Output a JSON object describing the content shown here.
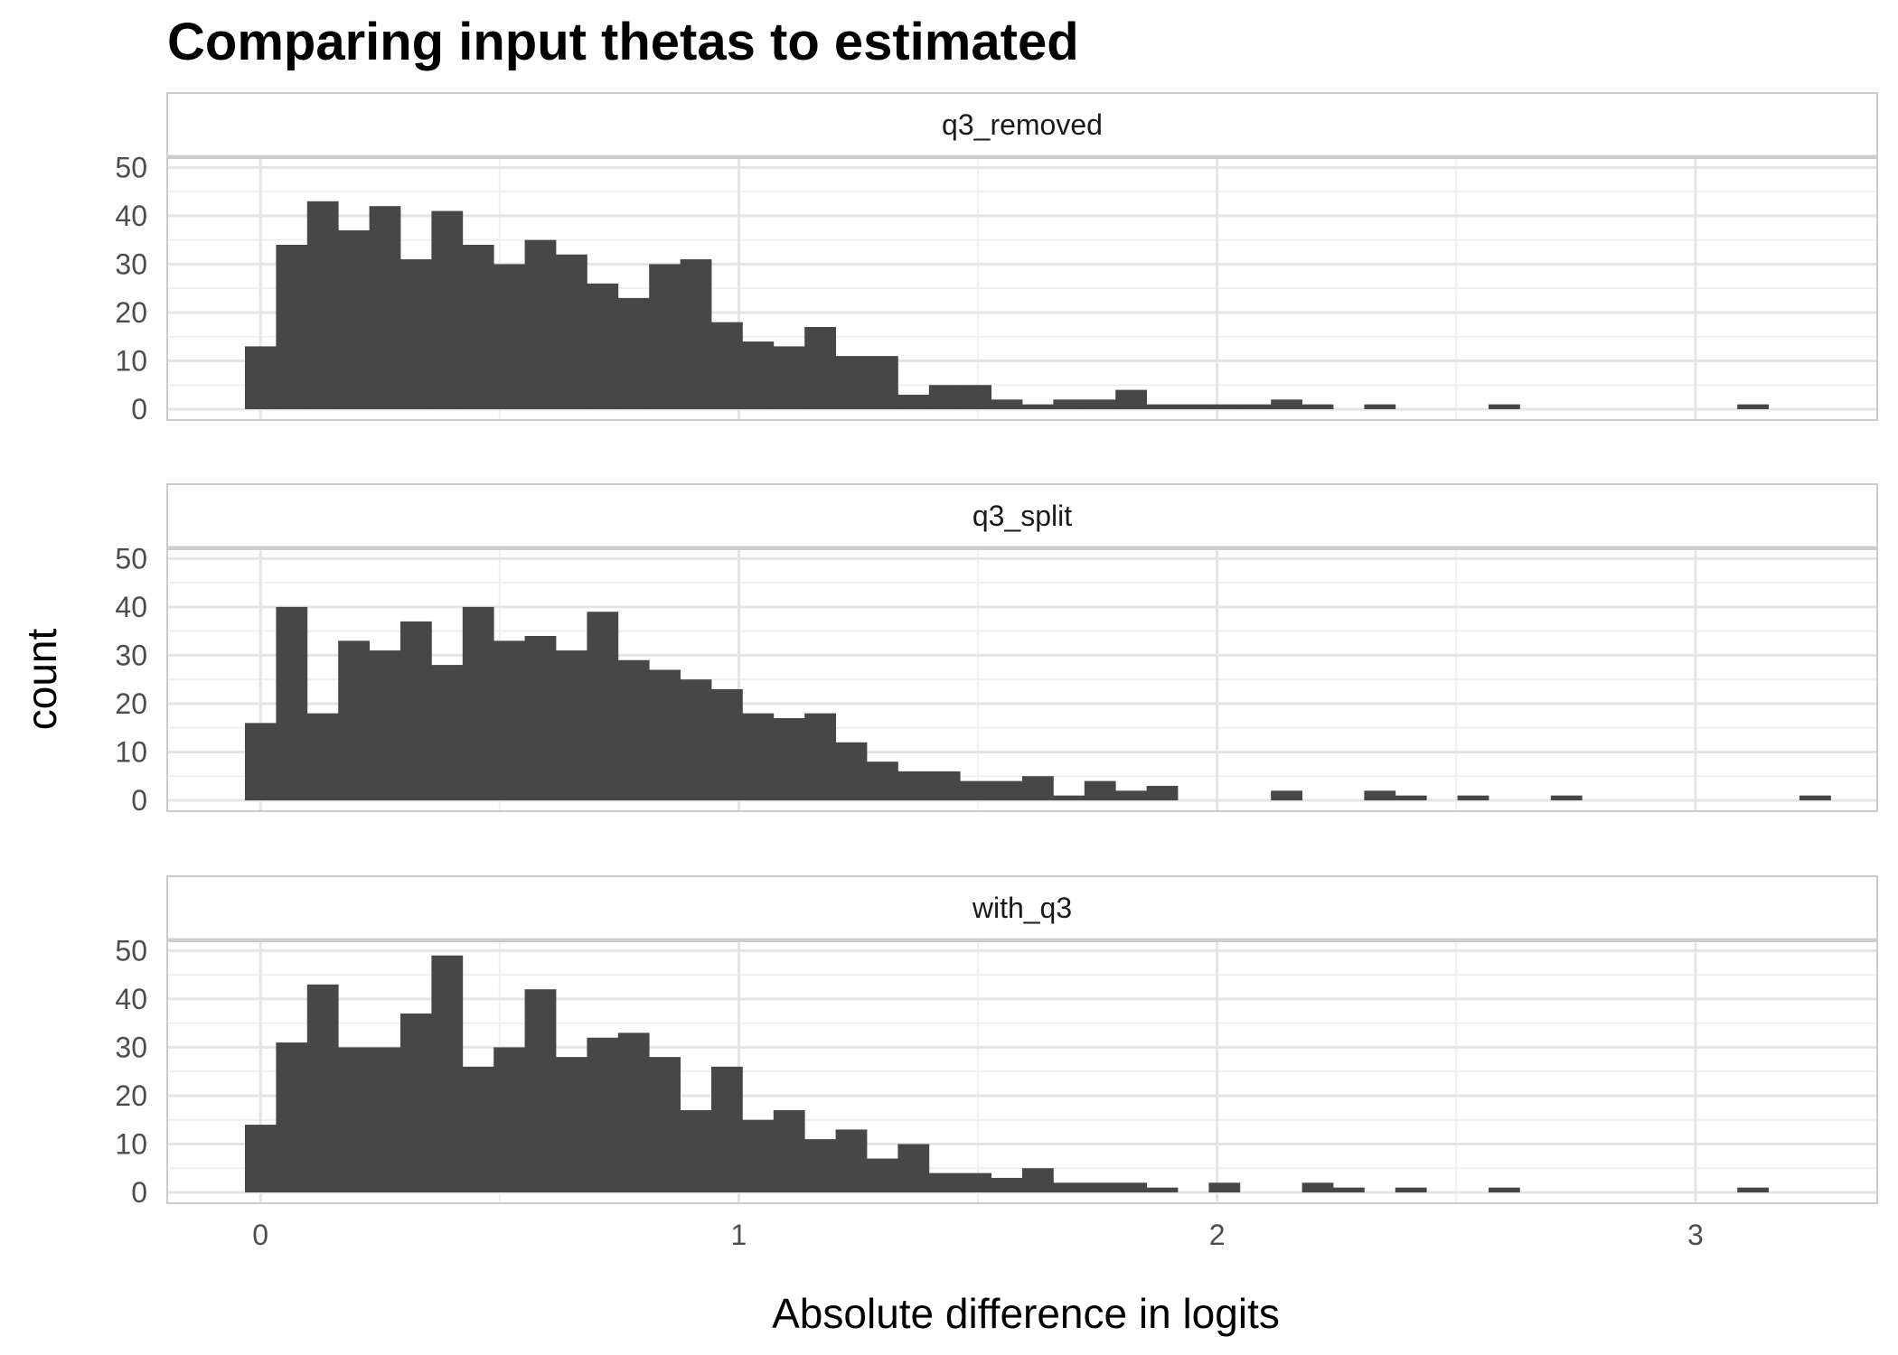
{
  "chart_data": {
    "type": "bar",
    "title": "Comparing input thetas to estimated",
    "xlabel": "Absolute difference in logits",
    "ylabel": "count",
    "bin_width": 0.065,
    "bin_start": -0.0325,
    "xlim": [
      -0.195,
      3.38
    ],
    "ylim": [
      0,
      51
    ],
    "x_ticks": [
      0,
      1,
      2,
      3
    ],
    "x_tick_labels": [
      "0",
      "1",
      "2",
      "3"
    ],
    "y_ticks": [
      0,
      10,
      20,
      30,
      40,
      50
    ],
    "y_tick_labels": [
      "0",
      "10",
      "20",
      "30",
      "40",
      "50"
    ],
    "grid": true,
    "bar_color": "#474747",
    "facets": [
      {
        "name": "q3_removed",
        "values": [
          13,
          34,
          43,
          37,
          42,
          31,
          41,
          34,
          30,
          35,
          32,
          26,
          23,
          30,
          31,
          18,
          14,
          13,
          17,
          11,
          11,
          3,
          5,
          5,
          2,
          1,
          2,
          2,
          4,
          1,
          1,
          1,
          1,
          2,
          1,
          0,
          1,
          0,
          0,
          0,
          1,
          0,
          0,
          0,
          0,
          0,
          0,
          0,
          1
        ]
      },
      {
        "name": "q3_split",
        "values": [
          16,
          40,
          18,
          33,
          31,
          37,
          28,
          40,
          33,
          34,
          31,
          39,
          29,
          27,
          25,
          23,
          18,
          17,
          18,
          12,
          8,
          6,
          6,
          4,
          4,
          5,
          1,
          4,
          2,
          3,
          0,
          0,
          0,
          2,
          0,
          0,
          2,
          1,
          0,
          1,
          0,
          0,
          1,
          0,
          0,
          0,
          0,
          0,
          0,
          0,
          1
        ]
      },
      {
        "name": "with_q3",
        "values": [
          14,
          31,
          43,
          30,
          30,
          37,
          49,
          26,
          30,
          42,
          28,
          32,
          33,
          28,
          17,
          26,
          15,
          17,
          11,
          13,
          7,
          10,
          4,
          4,
          3,
          5,
          2,
          2,
          2,
          1,
          0,
          2,
          0,
          0,
          2,
          1,
          0,
          1,
          0,
          0,
          1,
          0,
          0,
          0,
          0,
          0,
          0,
          0,
          1
        ]
      }
    ]
  }
}
